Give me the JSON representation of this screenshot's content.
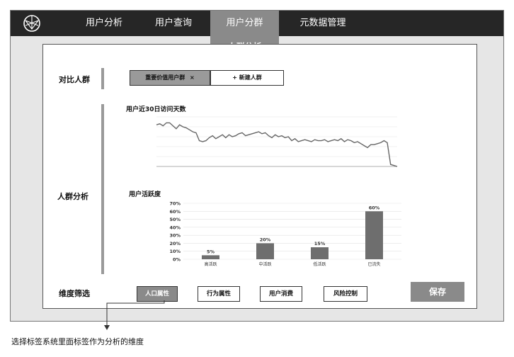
{
  "nav": {
    "items": [
      "用户分析",
      "用户查询",
      "用户分群",
      "元数据管理"
    ],
    "active_index": 2,
    "submenu_label": "人群分析"
  },
  "compare": {
    "label": "对比人群",
    "chips": [
      {
        "label": "重要价值用户群",
        "close": "×"
      },
      {
        "label": "+ 新建人群"
      }
    ]
  },
  "analysis": {
    "label": "人群分析",
    "visit_chart_title": "用户近30日访问天数",
    "activity_chart_title": "用户活跃度"
  },
  "chart_data": [
    {
      "type": "line",
      "title": "用户近30日访问天数",
      "ylim": [
        0,
        2.5
      ],
      "values": [
        2.1,
        2.15,
        2.05,
        2.2,
        2.2,
        2.05,
        1.9,
        2.1,
        2.0,
        1.95,
        1.85,
        1.75,
        1.7,
        1.3,
        1.25,
        1.3,
        1.45,
        1.55,
        1.4,
        1.5,
        1.6,
        1.45,
        1.6,
        1.5,
        1.55,
        1.65,
        1.7,
        1.55,
        1.6,
        1.65,
        1.7,
        1.75,
        1.65,
        1.7,
        1.55,
        1.45,
        1.6,
        1.5,
        1.55,
        1.45,
        1.5,
        1.3,
        1.4,
        1.25,
        1.3,
        1.35,
        1.3,
        1.25,
        1.35,
        1.3,
        1.3,
        1.35,
        1.25,
        1.3,
        1.35,
        1.3,
        1.4,
        1.25,
        1.35,
        1.3,
        1.2,
        1.25,
        1.15,
        1.05,
        0.95,
        1.1,
        1.1,
        1.15,
        1.2,
        1.3,
        1.2,
        0.1,
        0.05,
        0.0
      ]
    },
    {
      "type": "bar",
      "title": "用户活跃度",
      "categories": [
        "高活跃",
        "中活跃",
        "低活跃",
        "已流失"
      ],
      "values": [
        5,
        20,
        15,
        60
      ],
      "value_labels": [
        "5%",
        "20%",
        "15%",
        "60%"
      ],
      "yticks": [
        "0%",
        "10%",
        "20%",
        "30%",
        "40%",
        "50%",
        "60%",
        "70%"
      ],
      "ylim": [
        0,
        70
      ],
      "bar_color": "#6e6e6e"
    }
  ],
  "filter": {
    "label": "维度筛选",
    "buttons": [
      "人口属性",
      "行为属性",
      "用户消费",
      "风险控制"
    ],
    "active_index": 0,
    "save_label": "保存"
  },
  "caption": "选择标签系统里面标签作为分析的维度"
}
